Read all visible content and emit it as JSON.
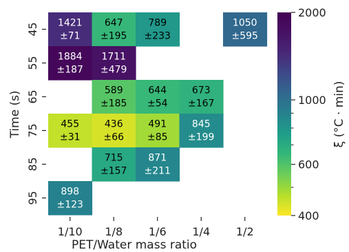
{
  "chart_data": {
    "type": "heatmap",
    "xlabel": "PET/Water mass ratio",
    "ylabel": "Time (s)",
    "x_categories": [
      "1/10",
      "1/8",
      "1/6",
      "1/4",
      "1/2"
    ],
    "y_categories": [
      "45",
      "55",
      "65",
      "75",
      "85",
      "95"
    ],
    "cells": [
      {
        "x": "1/10",
        "y": "45",
        "value": 1421,
        "error": 71
      },
      {
        "x": "1/8",
        "y": "45",
        "value": 647,
        "error": 195
      },
      {
        "x": "1/6",
        "y": "45",
        "value": 789,
        "error": 233
      },
      {
        "x": "1/2",
        "y": "45",
        "value": 1050,
        "error": 595
      },
      {
        "x": "1/10",
        "y": "55",
        "value": 1884,
        "error": 187
      },
      {
        "x": "1/8",
        "y": "55",
        "value": 1711,
        "error": 479
      },
      {
        "x": "1/8",
        "y": "65",
        "value": 589,
        "error": 185
      },
      {
        "x": "1/6",
        "y": "65",
        "value": 644,
        "error": 54
      },
      {
        "x": "1/4",
        "y": "65",
        "value": 673,
        "error": 167
      },
      {
        "x": "1/10",
        "y": "75",
        "value": 455,
        "error": 31
      },
      {
        "x": "1/8",
        "y": "75",
        "value": 436,
        "error": 66
      },
      {
        "x": "1/6",
        "y": "75",
        "value": 491,
        "error": 85
      },
      {
        "x": "1/4",
        "y": "75",
        "value": 845,
        "error": 199
      },
      {
        "x": "1/8",
        "y": "85",
        "value": 715,
        "error": 157
      },
      {
        "x": "1/6",
        "y": "85",
        "value": 871,
        "error": 211
      },
      {
        "x": "1/10",
        "y": "95",
        "value": 898,
        "error": 123
      }
    ],
    "colorbar": {
      "label": "ξ (°C · min)",
      "scale": "log",
      "colormap": "viridis_r",
      "range": [
        400,
        2000
      ],
      "ticks": [
        {
          "value": 400,
          "label": "400"
        },
        {
          "value": 600,
          "label": "600"
        },
        {
          "value": 1000,
          "label": "1000"
        },
        {
          "value": 2000,
          "label": "2000"
        }
      ],
      "minor_ticks": [
        500,
        700,
        800,
        900
      ]
    },
    "error_prefix": "±",
    "colors": {
      "dark_text": "#000000",
      "light_text": "#ffffff"
    }
  }
}
